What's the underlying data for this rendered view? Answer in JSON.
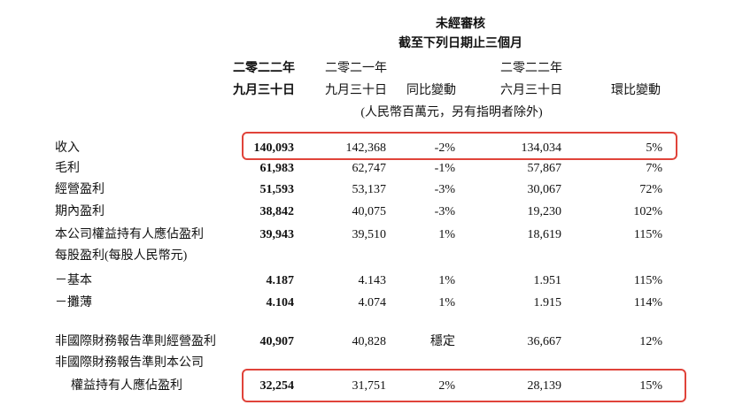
{
  "header": {
    "title": "未經審核",
    "subtitle": "截至下列日期止三個月",
    "unit_note": "(人民幣百萬元，另有指明者除外)"
  },
  "columns": [
    {
      "lines": [
        "二零二二年",
        "九月三十日"
      ]
    },
    {
      "lines": [
        "二零二一年",
        "九月三十日"
      ]
    },
    {
      "lines": [
        "同比變動"
      ]
    },
    {
      "lines": [
        "二零二二年",
        "六月三十日"
      ]
    },
    {
      "lines": [
        "環比變動"
      ]
    }
  ],
  "table": {
    "rows": [
      {
        "label": [
          "收入"
        ],
        "cells": [
          "140,093",
          "142,368",
          "-2%",
          "134,034",
          "5%"
        ]
      },
      {
        "label": [
          "毛利"
        ],
        "cells": [
          "61,983",
          "62,747",
          "-1%",
          "57,867",
          "7%"
        ]
      },
      {
        "label": [
          "經營盈利"
        ],
        "cells": [
          "51,593",
          "53,137",
          "-3%",
          "30,067",
          "72%"
        ]
      },
      {
        "label": [
          "期內盈利"
        ],
        "cells": [
          "38,842",
          "40,075",
          "-3%",
          "19,230",
          "102%"
        ]
      },
      {
        "label": [
          "本公司權益持有人應佔盈利"
        ],
        "cells": [
          "39,943",
          "39,510",
          "1%",
          "18,619",
          "115%"
        ]
      },
      {
        "label": [
          "每股盈利(每股人民幣元)"
        ]
      },
      {
        "label": [
          "－基本"
        ],
        "cells": [
          "4.187",
          "4.143",
          "1%",
          "1.951",
          "115%"
        ]
      },
      {
        "label": [
          "－攤薄"
        ],
        "cells": [
          "4.104",
          "4.074",
          "1%",
          "1.915",
          "114%"
        ]
      },
      {
        "label": [
          "非國際財務報告準則經營盈利"
        ],
        "cells": [
          "40,907",
          "40,828",
          "穩定",
          "36,667",
          "12%"
        ]
      },
      {
        "label": [
          "非國際財務報告準則本公司",
          "權益持有人應佔盈利"
        ],
        "cells": [
          "32,254",
          "31,751",
          "2%",
          "28,139",
          "15%"
        ]
      }
    ]
  }
}
